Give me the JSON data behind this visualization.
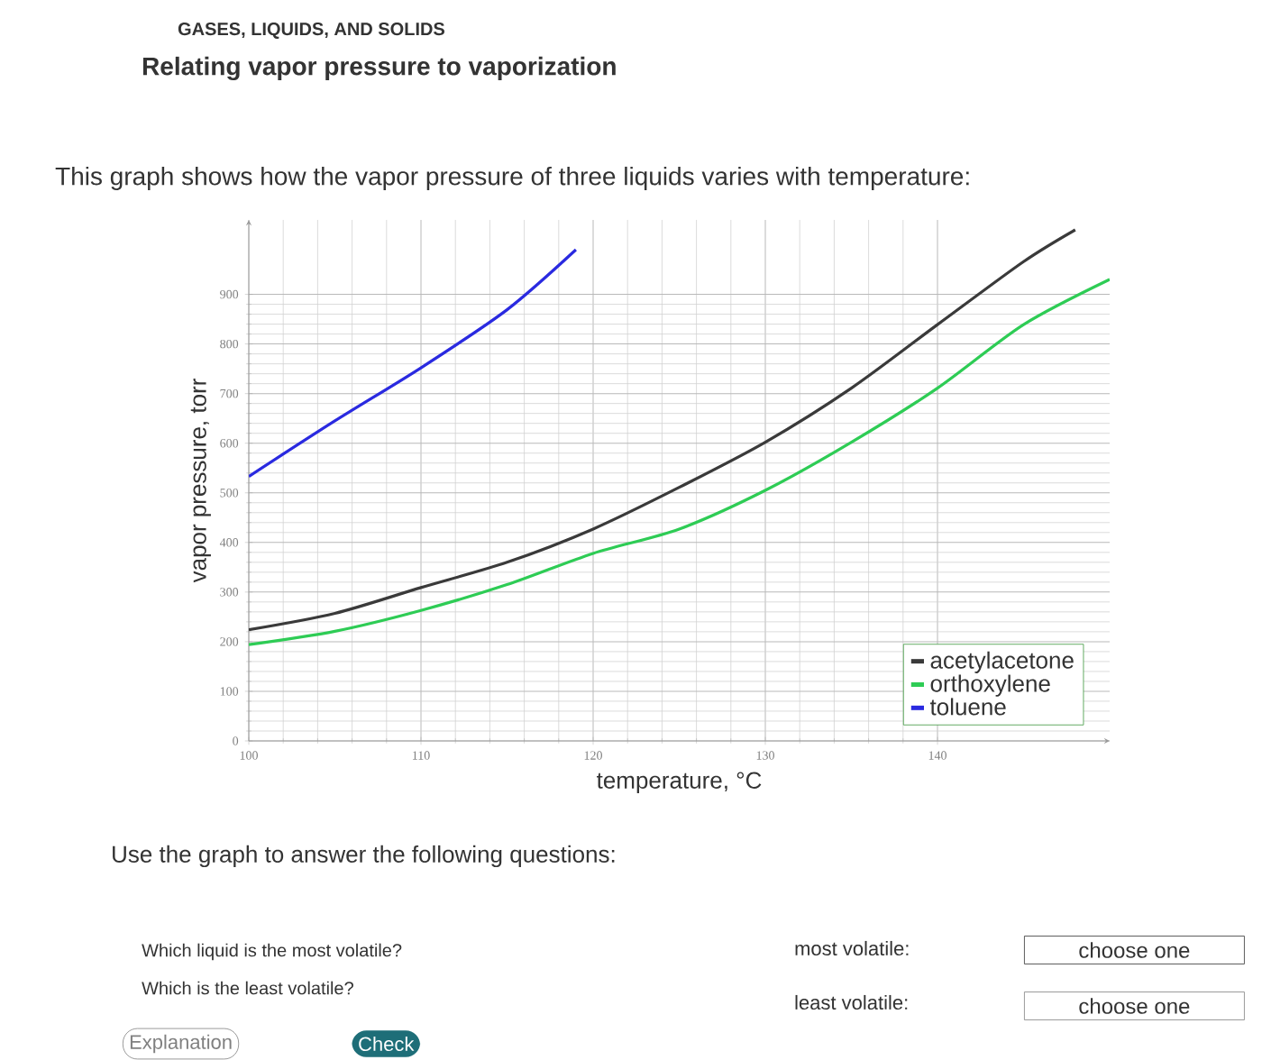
{
  "chart_data": {
    "type": "line",
    "title": "Relating vapor pressure to vaporization",
    "subtitle": "This graph shows how the vapor pressure of three liquids varies with temperature:",
    "annotations": [
      "GASES, LIQUIDS, AND SOLIDS",
      "Use the graph to answer the following questions:",
      "Which liquid is the most volatile?",
      "Which is the least volatile?",
      "most volatile:",
      "least volatile:",
      "choose one",
      "choose one",
      "Explanation",
      "Check"
    ],
    "xlabel": "temperature, °C",
    "ylabel": "vapor pressure, torr",
    "xlim": [
      100,
      150
    ],
    "ylim": [
      0,
      1050
    ],
    "xticks": [
      100,
      110,
      120,
      130,
      140
    ],
    "yticks": [
      0,
      100,
      200,
      300,
      400,
      500,
      600,
      700,
      800,
      900
    ],
    "grid": true,
    "legend": "bottom right",
    "marker": "none",
    "line_style": "solid",
    "series": [
      {
        "name": "acetylacetone",
        "color": "#3a3a3a",
        "x": [
          100,
          105,
          110,
          115,
          120,
          125,
          130,
          135,
          140,
          145,
          148
        ],
        "values": [
          224,
          257,
          309,
          360,
          427,
          511,
          602,
          711,
          839,
          966,
          1030
        ]
      },
      {
        "name": "orthoxylene",
        "color": "#2ecc55",
        "x": [
          100,
          105,
          110,
          115,
          120,
          125,
          130,
          135,
          140,
          145,
          150
        ],
        "values": [
          194,
          221,
          263,
          315,
          378,
          427,
          505,
          602,
          711,
          839,
          930
        ]
      },
      {
        "name": "toluene",
        "color": "#2a2ae0",
        "x": [
          100,
          105,
          110,
          115,
          119
        ],
        "values": [
          533,
          645,
          752,
          869,
          990
        ]
      }
    ]
  }
}
